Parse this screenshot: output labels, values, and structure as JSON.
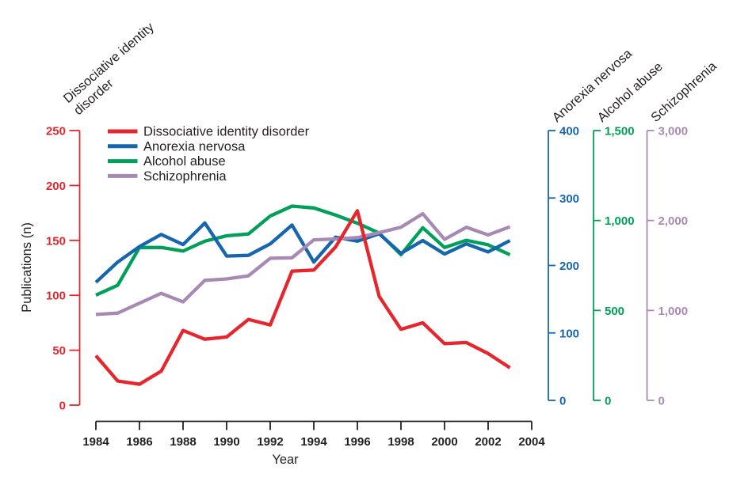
{
  "colors": {
    "text": "#231f20",
    "red": "#e5262d",
    "blue": "#1566af",
    "green": "#00a05a",
    "purple": "#a78ab4",
    "background": "#ffffff"
  },
  "legend": {
    "items": [
      {
        "label": "Dissociative identity disorder",
        "color": "#e5262d"
      },
      {
        "label": "Anorexia nervosa",
        "color": "#1566af"
      },
      {
        "label": "Alcohol abuse",
        "color": "#00a05a"
      },
      {
        "label": "Schizophrenia",
        "color": "#a78ab4"
      }
    ]
  },
  "chart_data": {
    "type": "line",
    "x": [
      1984,
      1985,
      1986,
      1987,
      1988,
      1989,
      1990,
      1991,
      1992,
      1993,
      1994,
      1995,
      1996,
      1997,
      1998,
      1999,
      2000,
      2001,
      2002,
      2003
    ],
    "x_axis": {
      "label": "Year",
      "tick_years": [
        1984,
        1986,
        1988,
        1990,
        1992,
        1994,
        1996,
        1998,
        2000,
        2002,
        2004
      ],
      "min": 1984,
      "max": 2004
    },
    "left_axis": {
      "title": "Publications (n)",
      "rotated_title_lines": [
        "Dissociative identity",
        "disorder"
      ],
      "color": "#e5262d",
      "max": 250,
      "tick_values": [
        0,
        50,
        100,
        150,
        200,
        250
      ],
      "tick_labels": [
        "0",
        "50",
        "100",
        "150",
        "200",
        "250"
      ]
    },
    "right_axes": [
      {
        "title": "Anorexia nervosa",
        "color": "#1566af",
        "max": 400,
        "tick_values": [
          0,
          100,
          200,
          300,
          400
        ],
        "tick_labels": [
          "0",
          "100",
          "200",
          "300",
          "400"
        ]
      },
      {
        "title": "Alcohol abuse",
        "color": "#00a05a",
        "max": 1500,
        "tick_values": [
          0,
          500,
          1000,
          1500
        ],
        "tick_labels": [
          "0",
          "500",
          "1,000",
          "1,500"
        ]
      },
      {
        "title": "Schizophrenia",
        "color": "#a78ab4",
        "max": 3000,
        "tick_values": [
          0,
          1000,
          2000,
          3000
        ],
        "tick_labels": [
          "0",
          "1,000",
          "2,000",
          "3,000"
        ]
      }
    ],
    "series": [
      {
        "name": "Dissociative identity disorder",
        "color": "#e5262d",
        "axis": "left",
        "axis_max": 250,
        "values": [
          45,
          22,
          19,
          31,
          68,
          60,
          62,
          78,
          73,
          122,
          123,
          144,
          177,
          99,
          69,
          75,
          56,
          57,
          47,
          34
        ]
      },
      {
        "name": "Anorexia nervosa",
        "color": "#1566af",
        "axis": "right-0",
        "axis_max": 400,
        "values": [
          175,
          205,
          228,
          246,
          231,
          263,
          214,
          215,
          232,
          260,
          205,
          242,
          236,
          247,
          218,
          237,
          217,
          232,
          220,
          237
        ]
      },
      {
        "name": "Alcohol abuse",
        "color": "#00a05a",
        "axis": "right-1",
        "axis_max": 1500,
        "values": [
          585,
          640,
          850,
          850,
          830,
          885,
          915,
          925,
          1025,
          1080,
          1070,
          1030,
          985,
          930,
          810,
          960,
          850,
          890,
          865,
          810
        ]
      },
      {
        "name": "Schizophrenia",
        "color": "#a78ab4",
        "axis": "right-2",
        "axis_max": 3000,
        "values": [
          955,
          970,
          1080,
          1190,
          1095,
          1335,
          1350,
          1385,
          1580,
          1585,
          1785,
          1795,
          1810,
          1865,
          1925,
          2075,
          1790,
          1925,
          1840,
          1930
        ]
      }
    ]
  }
}
